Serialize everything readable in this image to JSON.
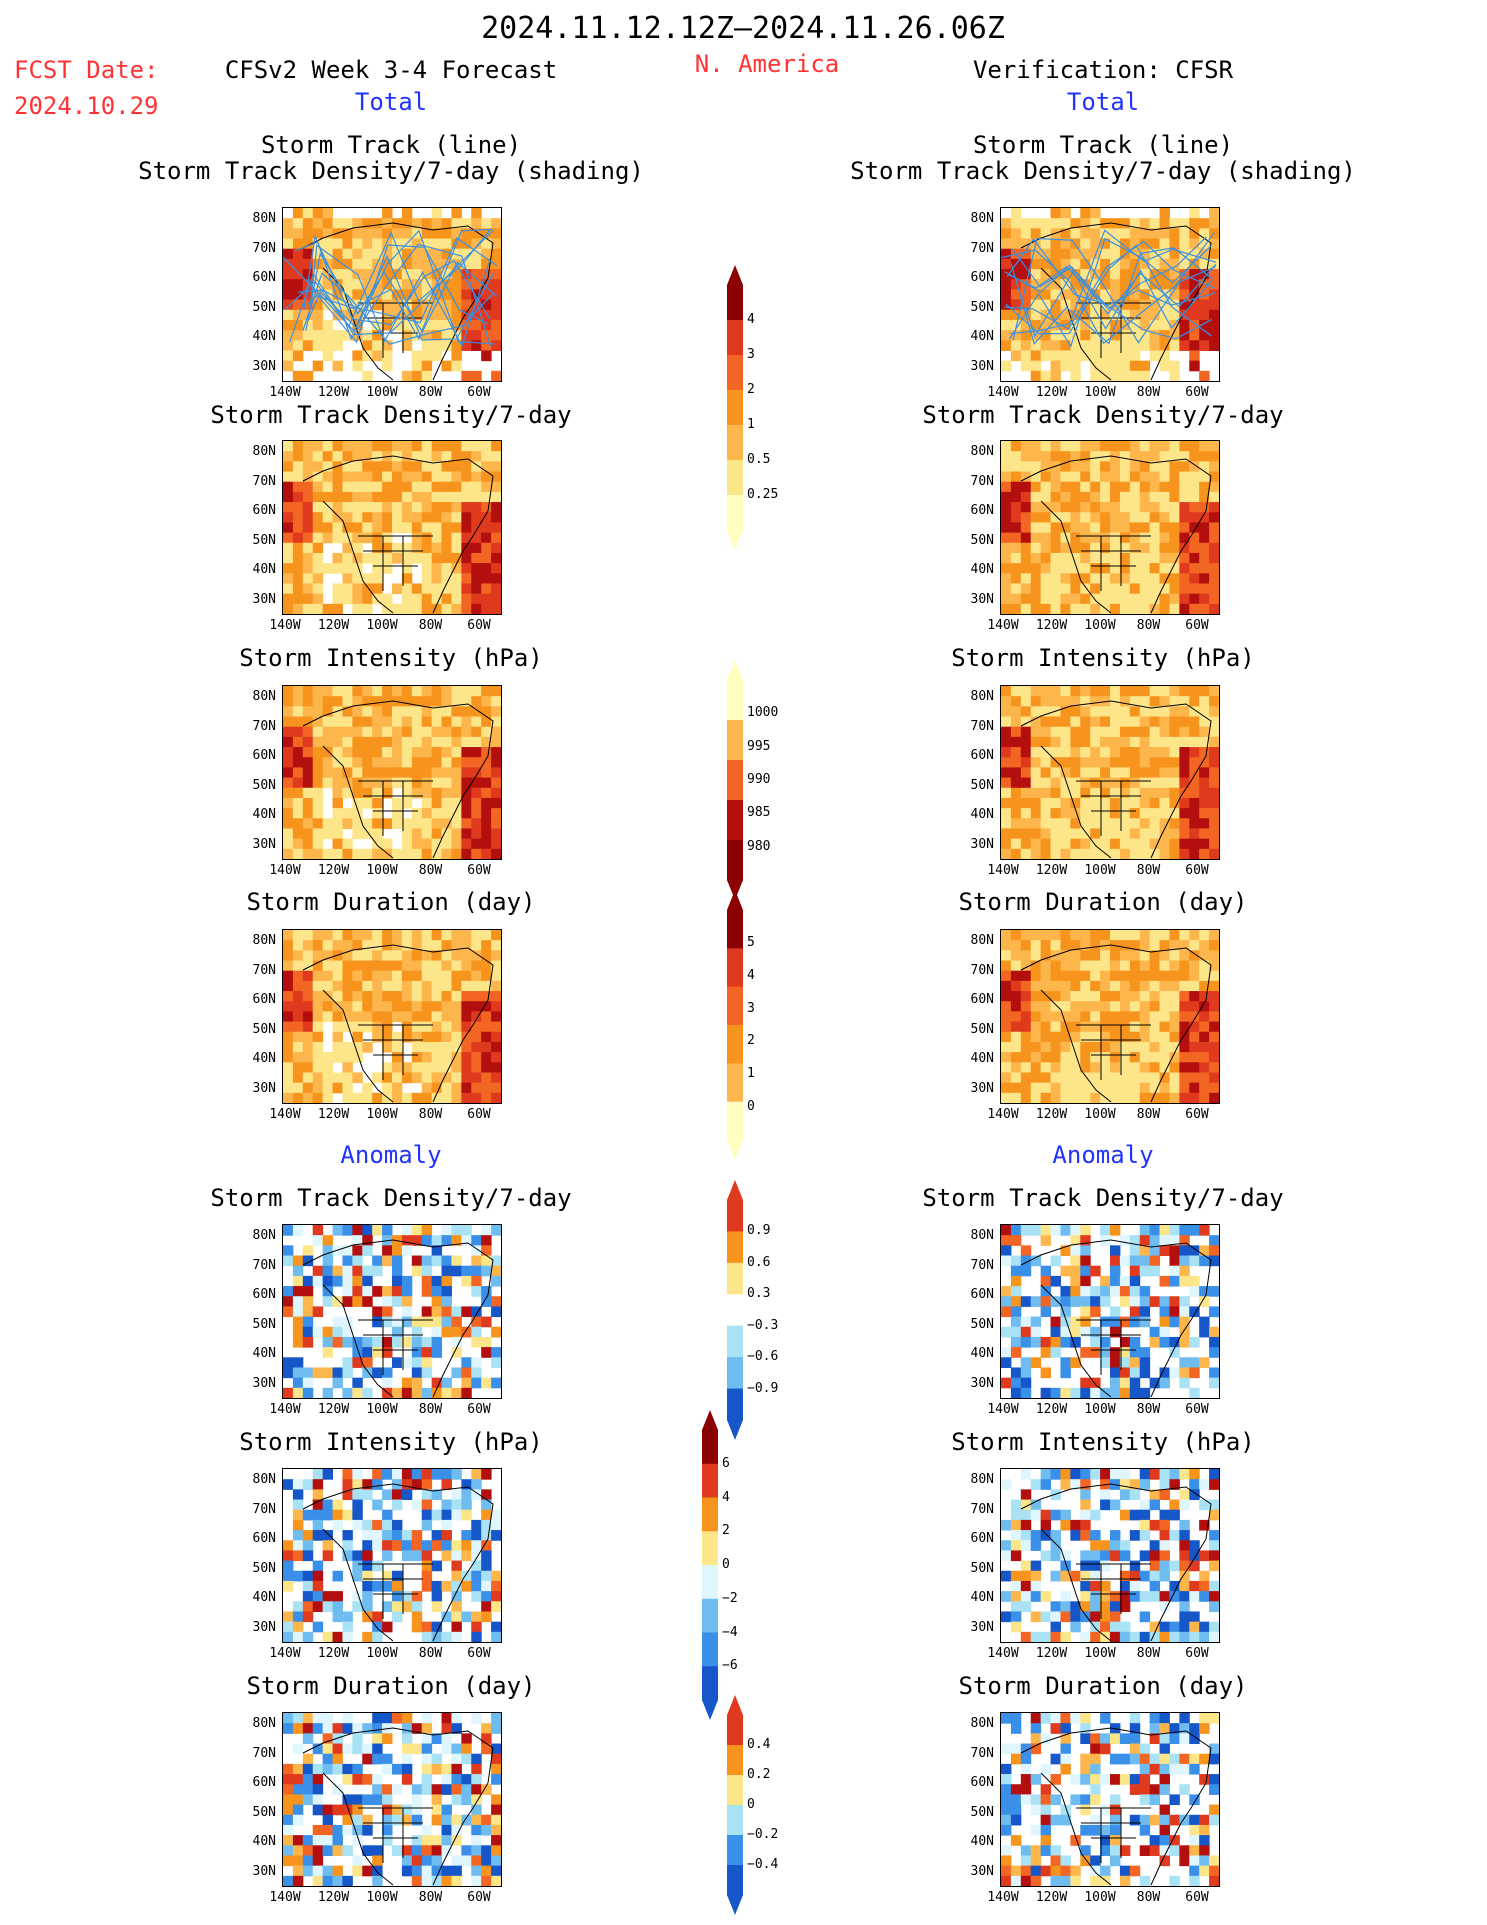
{
  "header": {
    "title": "2024.11.12.12Z–2024.11.26.06Z",
    "region": "N. America",
    "fcst_date_label": "FCST Date:",
    "fcst_date": "2024.10.29",
    "model_title": "CFSv2 Week 3-4 Forecast",
    "verification_title": "Verification: CFSR",
    "total_label": "Total",
    "anomaly_label": "Anomaly"
  },
  "panel_titles": {
    "storm_track_line": "Storm Track (line)",
    "storm_track_density_shading": "Storm Track Density/7-day (shading)",
    "storm_track_density": "Storm Track Density/7-day",
    "storm_intensity": "Storm Intensity (hPa)",
    "storm_duration": "Storm Duration (day)"
  },
  "axes": {
    "lat_labels": [
      "80N",
      "70N",
      "60N",
      "50N",
      "40N",
      "30N"
    ],
    "lon_labels": [
      "140W",
      "120W",
      "100W",
      "80W",
      "60W"
    ]
  },
  "colorbars": {
    "total_density": [
      "4",
      "3",
      "2",
      "1",
      "0.5",
      "0.25"
    ],
    "total_intensity": [
      "1000",
      "995",
      "990",
      "985",
      "980"
    ],
    "total_duration": [
      "5",
      "4",
      "3",
      "2",
      "1",
      "0"
    ],
    "anom_density": [
      "0.9",
      "0.6",
      "0.3",
      "−0.3",
      "−0.6",
      "−0.9"
    ],
    "anom_intensity": [
      "6",
      "4",
      "2",
      "0",
      "−2",
      "−4",
      "−6"
    ],
    "anom_duration": [
      "0.4",
      "0.2",
      "0",
      "−0.2",
      "−0.4"
    ]
  },
  "colors": {
    "warm": [
      "#ffffc0",
      "#fde68a",
      "#fdb64c",
      "#f7941d",
      "#f26522",
      "#e03a1e",
      "#b30f0f",
      "#8b0000"
    ],
    "cool": [
      "#dff6ff",
      "#a9e2f5",
      "#6fbdf0",
      "#3a8fe8",
      "#1556c8"
    ],
    "track_line": "#3b8fe0",
    "title_red": "#ff3333",
    "label_blue": "#2233ff"
  }
}
